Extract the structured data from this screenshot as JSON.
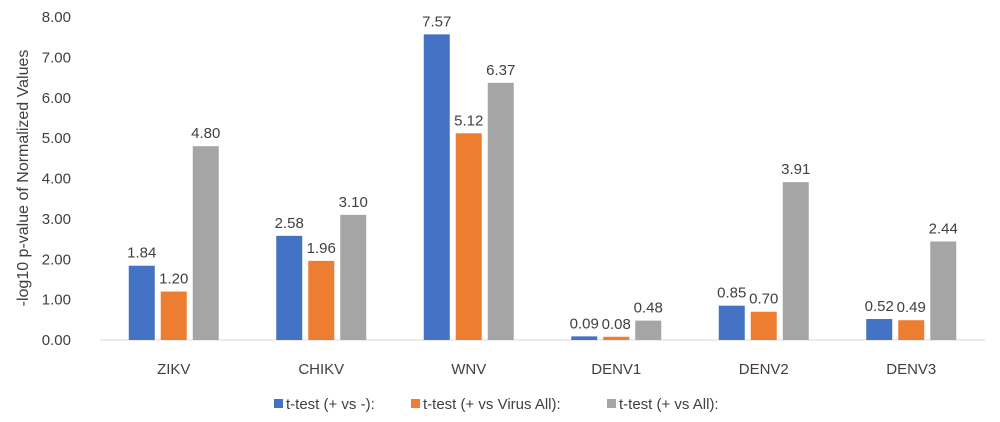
{
  "chart_data": {
    "type": "bar",
    "title": "",
    "xlabel": "",
    "ylabel": "-log10 p-value of Normalized Values",
    "ylim": [
      0,
      8
    ],
    "yticks": [
      "0.00",
      "1.00",
      "2.00",
      "3.00",
      "4.00",
      "5.00",
      "6.00",
      "7.00",
      "8.00"
    ],
    "grid": false,
    "legend_position": "bottom",
    "categories": [
      "ZIKV",
      "CHIKV",
      "WNV",
      "DENV1",
      "DENV2",
      "DENV3"
    ],
    "series": [
      {
        "name": "t-test (+ vs -):",
        "color": "#4472c4",
        "values": [
          1.84,
          2.58,
          7.57,
          0.09,
          0.85,
          0.52
        ],
        "labels": [
          "1.84",
          "2.58",
          "7.57",
          "0.09",
          "0.85",
          "0.52"
        ]
      },
      {
        "name": "t-test (+ vs Virus All):",
        "color": "#ed7d31",
        "values": [
          1.2,
          1.96,
          5.12,
          0.08,
          0.7,
          0.49
        ],
        "labels": [
          "1.20",
          "1.96",
          "5.12",
          "0.08",
          "0.70",
          "0.49"
        ]
      },
      {
        "name": "t-test (+ vs All):",
        "color": "#a5a5a5",
        "values": [
          4.8,
          3.1,
          6.37,
          0.48,
          3.91,
          2.44
        ],
        "labels": [
          "4.80",
          "3.10",
          "6.37",
          "0.48",
          "3.91",
          "2.44"
        ]
      }
    ]
  }
}
